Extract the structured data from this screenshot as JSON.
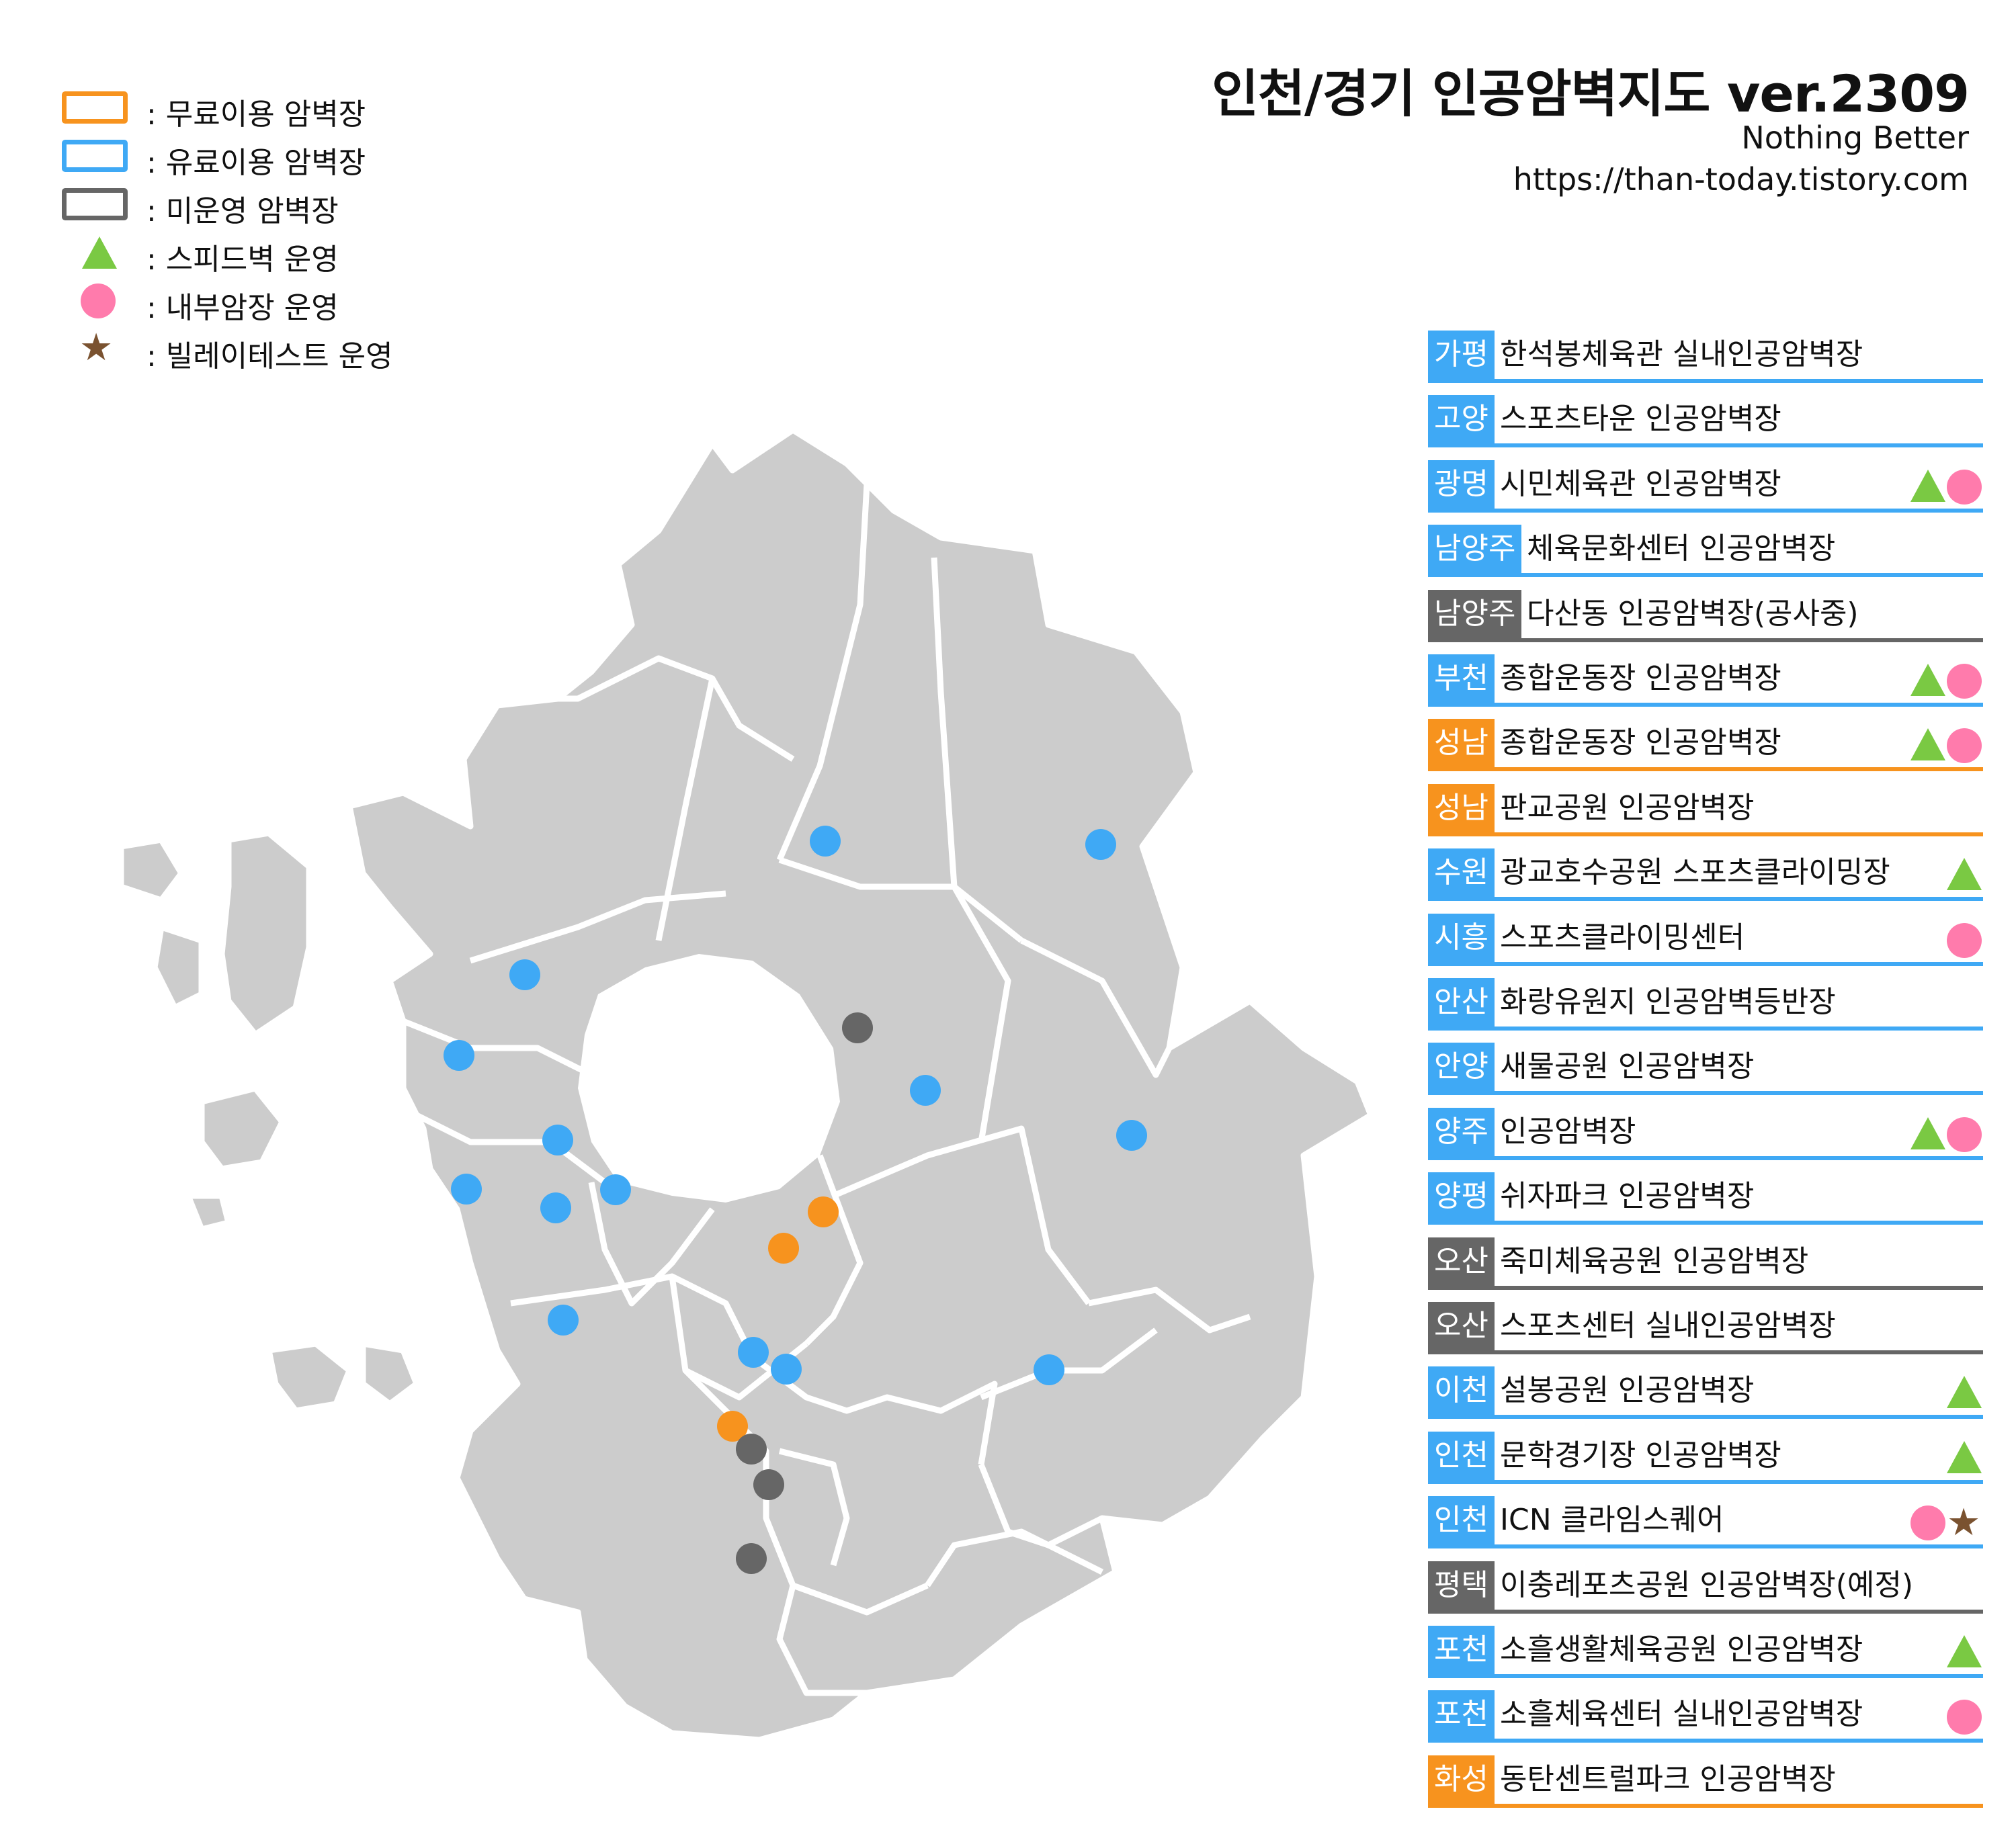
{
  "map": {
    "title": "인천/경기 인공암벽지도 ver.2309",
    "subtitle": "Nothing Better",
    "url": "https://than-today.tistory.com",
    "colors": {
      "free": "#f7931e",
      "paid": "#3fa9f5",
      "closed": "#666666",
      "speed": "#7ac943",
      "bouldering": "#ff7bac",
      "belay": "#7a5230",
      "land": "#cccccc",
      "border": "#ffffff"
    },
    "legend": [
      {
        "symbol": "orange-box-icon",
        "label": ": 무료이용 암벽장"
      },
      {
        "symbol": "blue-box-icon",
        "label": ": 유료이용 암벽장"
      },
      {
        "symbol": "gray-box-icon",
        "label": ": 미운영 암벽장"
      },
      {
        "symbol": "green-triangle-icon",
        "label": ": 스피드벽 운영"
      },
      {
        "symbol": "pink-circle-icon",
        "label": ": 내부암장 운영"
      },
      {
        "symbol": "brown-star-icon",
        "label": ": 빌레이테스트 운영"
      }
    ],
    "venues": [
      {
        "region": "가평",
        "name": "한석봉체육관 실내인공암벽장",
        "status": "paid",
        "icons": []
      },
      {
        "region": "고양",
        "name": "스포츠타운 인공암벽장",
        "status": "paid",
        "icons": []
      },
      {
        "region": "광명",
        "name": "시민체육관 인공암벽장",
        "status": "paid",
        "icons": [
          "triangle",
          "circle"
        ]
      },
      {
        "region": "남양주",
        "name": "체육문화센터 인공암벽장",
        "status": "paid",
        "icons": []
      },
      {
        "region": "남양주",
        "name": "다산동 인공암벽장(공사중)",
        "status": "closed",
        "icons": []
      },
      {
        "region": "부천",
        "name": "종합운동장 인공암벽장",
        "status": "paid",
        "icons": [
          "triangle",
          "circle"
        ]
      },
      {
        "region": "성남",
        "name": "종합운동장 인공암벽장",
        "status": "free",
        "icons": [
          "triangle",
          "circle"
        ]
      },
      {
        "region": "성남",
        "name": "판교공원 인공암벽장",
        "status": "free",
        "icons": []
      },
      {
        "region": "수원",
        "name": "광교호수공원 스포츠클라이밍장",
        "status": "paid",
        "icons": [
          "triangle"
        ]
      },
      {
        "region": "시흥",
        "name": "스포츠클라이밍센터",
        "status": "paid",
        "icons": [
          "circle"
        ]
      },
      {
        "region": "안산",
        "name": "화랑유원지 인공암벽등반장",
        "status": "paid",
        "icons": []
      },
      {
        "region": "안양",
        "name": "새물공원 인공암벽장",
        "status": "paid",
        "icons": []
      },
      {
        "region": "양주",
        "name": "인공암벽장",
        "status": "paid",
        "icons": [
          "triangle",
          "circle"
        ]
      },
      {
        "region": "양평",
        "name": "쉬자파크 인공암벽장",
        "status": "paid",
        "icons": []
      },
      {
        "region": "오산",
        "name": "죽미체육공원 인공암벽장",
        "status": "closed",
        "icons": []
      },
      {
        "region": "오산",
        "name": "스포츠센터 실내인공암벽장",
        "status": "closed",
        "icons": []
      },
      {
        "region": "이천",
        "name": "설봉공원 인공암벽장",
        "status": "paid",
        "icons": [
          "triangle"
        ]
      },
      {
        "region": "인천",
        "name": "문학경기장 인공암벽장",
        "status": "paid",
        "icons": [
          "triangle"
        ]
      },
      {
        "region": "인천",
        "name": "ICN 클라임스퀘어",
        "status": "paid",
        "icons": [
          "circle",
          "star"
        ]
      },
      {
        "region": "평택",
        "name": "이충레포츠공원 인공암벽장(예정)",
        "status": "closed",
        "icons": []
      },
      {
        "region": "포천",
        "name": "소흘생활체육공원 인공암벽장",
        "status": "paid",
        "icons": [
          "triangle"
        ]
      },
      {
        "region": "포천",
        "name": "소흘체육센터 실내인공암벽장",
        "status": "paid",
        "icons": [
          "circle"
        ]
      },
      {
        "region": "화성",
        "name": "동탄센트럴파크 인공암벽장",
        "status": "free",
        "icons": []
      }
    ],
    "markers": [
      {
        "status": "paid"
      },
      {
        "status": "paid"
      },
      {
        "status": "paid"
      },
      {
        "status": "paid"
      },
      {
        "status": "closed"
      },
      {
        "status": "paid"
      },
      {
        "status": "paid"
      },
      {
        "status": "paid"
      },
      {
        "status": "paid"
      },
      {
        "status": "paid"
      },
      {
        "status": "paid"
      },
      {
        "status": "free"
      },
      {
        "status": "free"
      },
      {
        "status": "paid"
      },
      {
        "status": "paid"
      },
      {
        "status": "paid"
      },
      {
        "status": "paid"
      },
      {
        "status": "free"
      },
      {
        "status": "closed"
      },
      {
        "status": "closed"
      },
      {
        "status": "closed"
      }
    ]
  }
}
